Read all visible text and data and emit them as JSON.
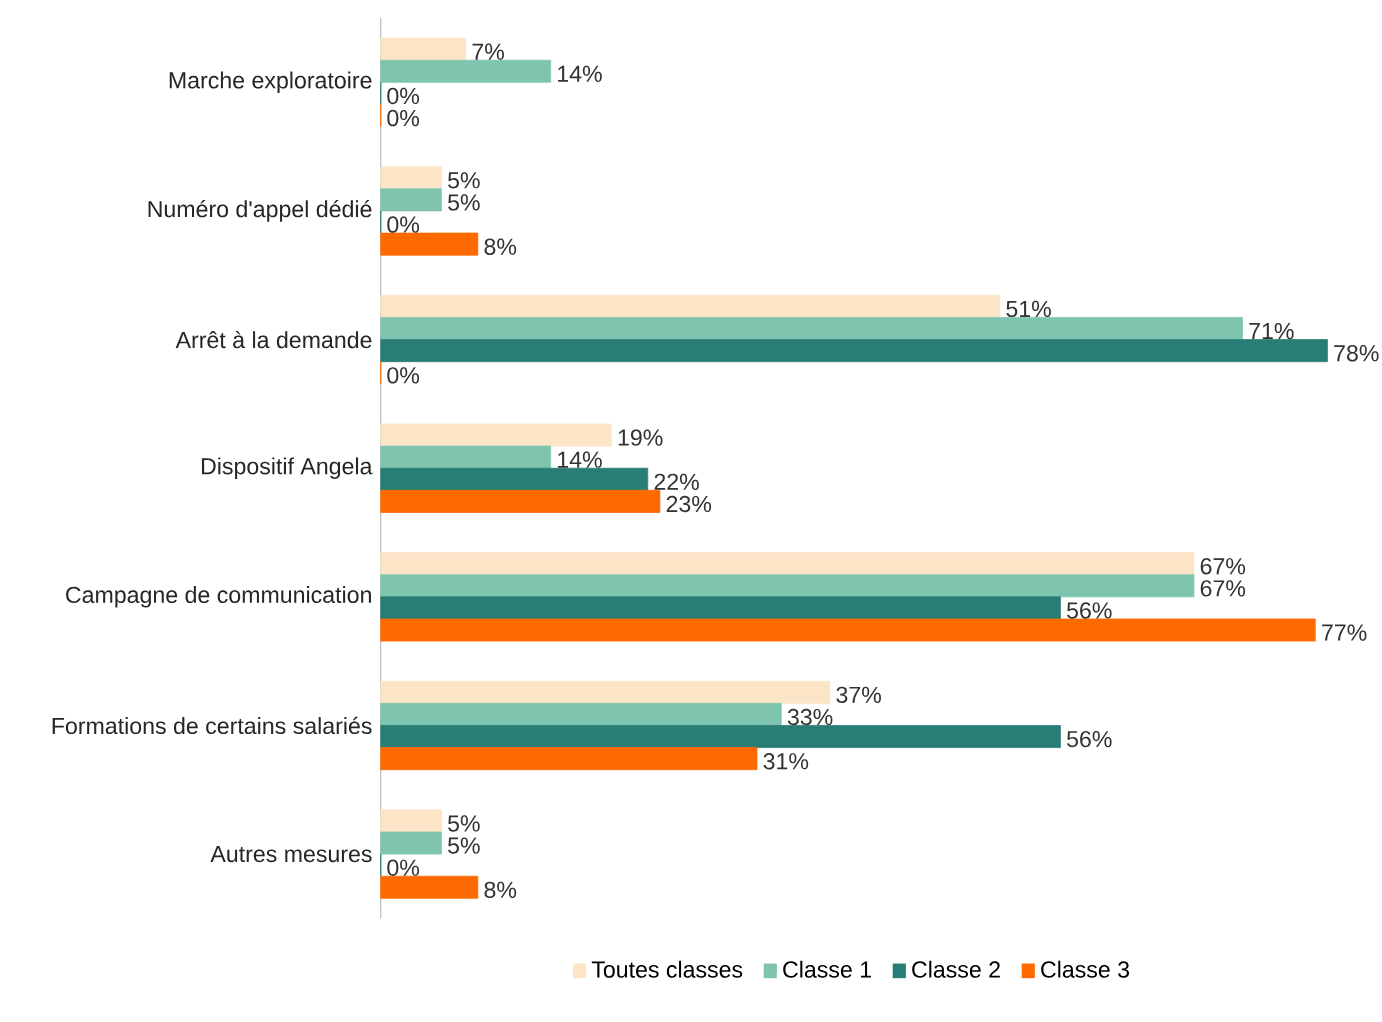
{
  "chart_data": {
    "type": "bar",
    "orientation": "horizontal",
    "tick_labels": "y",
    "legend": "bottom",
    "grid": false,
    "categories": [
      "Marche exploratoire",
      "Numéro d'appel dédié",
      "Arrêt à la demande",
      "Dispositif Angela",
      "Campagne de communication",
      "Formations de certains salariés",
      "Autres mesures"
    ],
    "series": [
      {
        "name": "Toutes classes",
        "color": "#fbe5c6",
        "values": [
          7,
          5,
          51,
          19,
          67,
          37,
          5
        ],
        "value_labels": [
          "7%",
          "5%",
          "51%",
          "19%",
          "67%",
          "37%",
          "5%"
        ]
      },
      {
        "name": "Classe 1",
        "color": "#7fc4ae",
        "values": [
          14,
          5,
          71,
          14,
          67,
          33,
          5
        ],
        "value_labels": [
          "14%",
          "5%",
          "71%",
          "14%",
          "67%",
          "33%",
          "5%"
        ]
      },
      {
        "name": "Classe 2",
        "color": "#287d74",
        "values": [
          0,
          0,
          78,
          22,
          56,
          56,
          0
        ],
        "value_labels": [
          "0%",
          "0%",
          "78%",
          "22%",
          "56%",
          "56%",
          "0%"
        ]
      },
      {
        "name": "Classe 3",
        "color": "#fe6a00",
        "values": [
          0,
          8,
          0,
          23,
          77,
          31,
          8
        ],
        "value_labels": [
          "0%",
          "8%",
          "0%",
          "23%",
          "77%",
          "31%",
          "8%"
        ]
      }
    ]
  }
}
